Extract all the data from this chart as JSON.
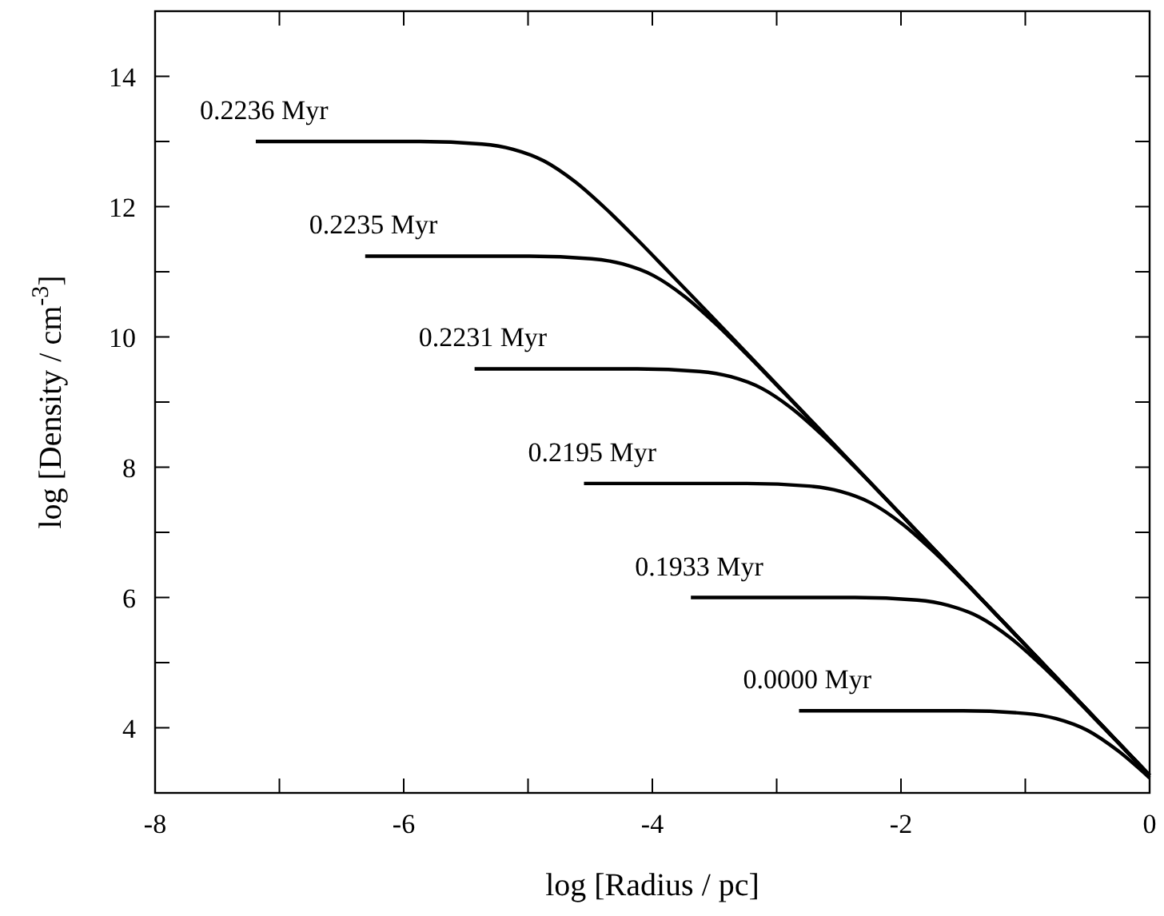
{
  "chart_data": {
    "type": "line",
    "xlabel": "log [Radius / pc]",
    "ylabel": "log [Density / cm$^{-3}$]",
    "xlim": [
      -8,
      0
    ],
    "ylim": [
      3,
      15
    ],
    "xticks": [
      -8,
      {
        "value": -7,
        "label": null
      },
      -6,
      {
        "value": -5,
        "label": null
      },
      -4,
      {
        "value": -3,
        "label": null
      },
      -2,
      {
        "value": -1,
        "label": null
      },
      0
    ],
    "yticks": [
      4,
      {
        "value": 5,
        "label": null
      },
      6,
      {
        "value": 7,
        "label": null
      },
      8,
      {
        "value": 9,
        "label": null
      },
      10,
      {
        "value": 11,
        "label": null
      },
      12,
      {
        "value": 13,
        "label": null
      },
      14
    ],
    "grid": false,
    "legend": false,
    "marker": "none",
    "line_style": "solid",
    "series": [
      {
        "name": "0.2236 Myr",
        "color": "#000000",
        "x": [
          -7.19,
          -5.87,
          -5.37,
          -5.12,
          -4.87,
          -4.62,
          -4.37,
          -4.12,
          -3.87,
          -2,
          0
        ],
        "values": [
          13.0,
          13.0,
          12.96,
          12.88,
          12.7,
          12.38,
          11.96,
          11.49,
          11.0,
          7.27,
          3.27
        ]
      },
      {
        "name": "0.2235 Myr",
        "color": "#000000",
        "x": [
          -6.31,
          -4.99,
          -4.49,
          -4.24,
          -3.99,
          -3.74,
          -3.49,
          -3.24,
          -2.99,
          -1.5,
          0
        ],
        "values": [
          11.24,
          11.24,
          11.2,
          11.12,
          10.94,
          10.62,
          10.2,
          9.73,
          9.24,
          6.27,
          3.27
        ]
      },
      {
        "name": "0.2231 Myr",
        "color": "#000000",
        "x": [
          -5.43,
          -4.12,
          -3.62,
          -3.37,
          -3.12,
          -2.87,
          -2.62,
          -2.37,
          -2.12,
          -1,
          0
        ],
        "values": [
          9.51,
          9.51,
          9.47,
          9.39,
          9.21,
          8.89,
          8.47,
          8.0,
          7.51,
          5.27,
          3.27
        ]
      },
      {
        "name": "0.2195 Myr",
        "color": "#000000",
        "x": [
          -4.55,
          -3.24,
          -2.74,
          -2.49,
          -2.24,
          -1.99,
          -1.74,
          -1.49,
          -1.24,
          -0.6,
          0
        ],
        "values": [
          7.75,
          7.75,
          7.71,
          7.63,
          7.45,
          7.13,
          6.71,
          6.24,
          5.75,
          4.47,
          3.27
        ]
      },
      {
        "name": "0.1933 Myr",
        "color": "#000000",
        "x": [
          -3.69,
          -2.37,
          -1.87,
          -1.62,
          -1.37,
          -1.12,
          -0.87,
          -0.62,
          -0.37,
          0
        ],
        "values": [
          6.0,
          6.0,
          5.96,
          5.88,
          5.7,
          5.38,
          4.96,
          4.49,
          4.0,
          3.27
        ]
      },
      {
        "name": "0.0000 Myr",
        "color": "#000000",
        "x": [
          -2.82,
          -1.5,
          -1.0,
          -0.75,
          -0.5,
          -0.25,
          0
        ],
        "values": [
          4.26,
          4.26,
          4.22,
          4.14,
          3.96,
          3.64,
          3.23
        ]
      }
    ]
  }
}
